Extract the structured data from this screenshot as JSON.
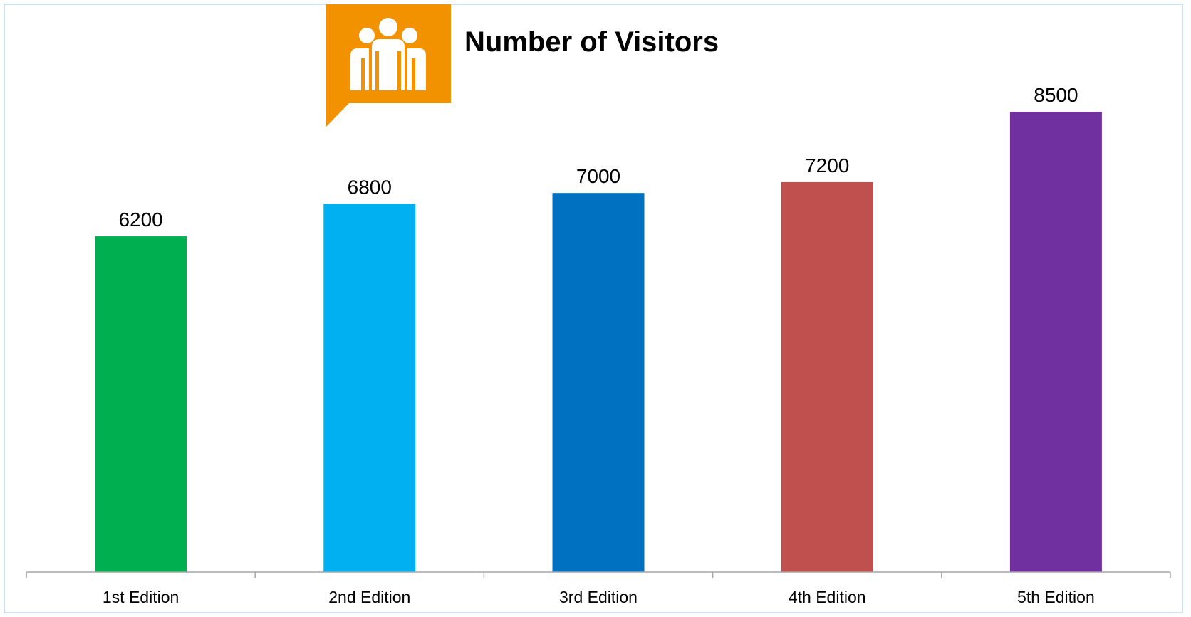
{
  "chart_data": {
    "type": "bar",
    "title": "Number of Visitors",
    "categories": [
      "1st Edition",
      "2nd Edition",
      "3rd Edition",
      "4th Edition",
      "5th Edition"
    ],
    "values": [
      6200,
      6800,
      7000,
      7200,
      8500
    ],
    "colors": [
      "#00B050",
      "#00B0F0",
      "#0070C0",
      "#C0504D",
      "#7030A0"
    ],
    "ylim": [
      0,
      8500
    ],
    "grid": false,
    "legend": "none",
    "data_labels": true
  },
  "style": {
    "badge_color": "#F39200",
    "border_color": "#BDD7EE",
    "axis_color": "#A6A6A6",
    "text_color": "#000000",
    "icon": "people-group-icon"
  }
}
